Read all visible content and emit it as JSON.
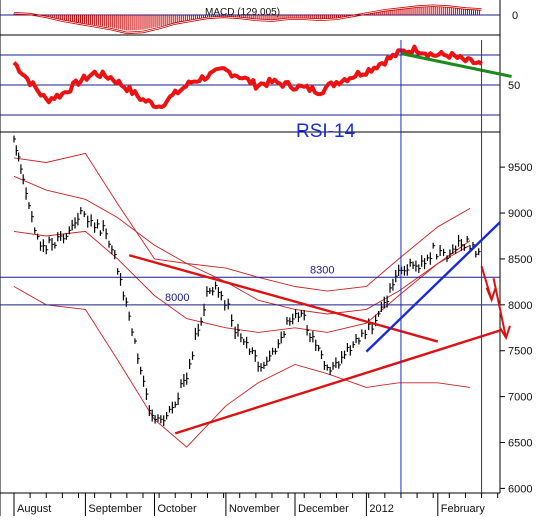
{
  "chart_data": [
    {
      "type": "bar",
      "panel": "macd",
      "title": "MACD (129.005)",
      "y_ticks": [
        "0"
      ],
      "zero_line": 0,
      "ylim": [
        -220,
        160
      ],
      "bar_color": "#cc0000",
      "envelope_color": "#cc0000",
      "note_bars": "histogram, weekly approximate",
      "x": [
        "Aug-01",
        "Aug-08",
        "Aug-15",
        "Aug-22",
        "Aug-29",
        "Sep-05",
        "Sep-12",
        "Sep-19",
        "Sep-26",
        "Oct-03",
        "Oct-10",
        "Oct-17",
        "Oct-24",
        "Oct-31",
        "Nov-07",
        "Nov-14",
        "Nov-21",
        "Nov-28",
        "Dec-05",
        "Dec-12",
        "Dec-19",
        "Dec-26",
        "Jan-02",
        "Jan-09",
        "Jan-16",
        "Jan-23",
        "Jan-30",
        "Feb-06",
        "Feb-13",
        "Feb-20"
      ],
      "values": [
        20,
        10,
        -20,
        -60,
        -90,
        -120,
        -150,
        -190,
        -180,
        -140,
        -90,
        -60,
        -30,
        -20,
        -30,
        -50,
        -60,
        -40,
        -40,
        -50,
        -40,
        -10,
        20,
        50,
        70,
        90,
        100,
        90,
        70,
        60
      ]
    },
    {
      "type": "line",
      "panel": "rsi",
      "title": "RSI-14",
      "y_ticks": [
        "50"
      ],
      "reference_levels": [
        70,
        50,
        30
      ],
      "ylim": [
        20,
        80
      ],
      "line_color": "#ee1111",
      "trendline_color": "#1a8a1a",
      "x": [
        "Aug-01",
        "Aug-08",
        "Aug-15",
        "Aug-22",
        "Aug-29",
        "Sep-05",
        "Sep-12",
        "Sep-19",
        "Sep-26",
        "Oct-03",
        "Oct-10",
        "Oct-17",
        "Oct-24",
        "Oct-31",
        "Nov-07",
        "Nov-14",
        "Nov-21",
        "Nov-28",
        "Dec-05",
        "Dec-12",
        "Dec-19",
        "Dec-26",
        "Jan-02",
        "Jan-09",
        "Jan-16",
        "Jan-23",
        "Jan-30",
        "Feb-06",
        "Feb-13",
        "Feb-20"
      ],
      "values": [
        65,
        52,
        40,
        44,
        52,
        58,
        55,
        48,
        40,
        36,
        44,
        52,
        56,
        60,
        56,
        50,
        52,
        50,
        48,
        46,
        52,
        56,
        60,
        66,
        72,
        74,
        70,
        70,
        66,
        64
      ],
      "trendline": [
        {
          "x": "Jan-16",
          "y": 71
        },
        {
          "x": "Feb-20",
          "y": 59
        }
      ]
    },
    {
      "type": "line",
      "panel": "price",
      "y_ticks": [
        6000,
        6500,
        7000,
        7500,
        8000,
        8500,
        9000,
        9500
      ],
      "ylim": [
        5950,
        9850
      ],
      "x_tick_labels": [
        "August",
        "September",
        "October",
        "November",
        "December",
        "2012",
        "February"
      ],
      "series": [
        {
          "style": "price-bars",
          "color": "#000000",
          "x": [
            "Aug-01",
            "Aug-05",
            "Aug-10",
            "Aug-15",
            "Aug-20",
            "Aug-25",
            "Aug-30",
            "Sep-05",
            "Sep-10",
            "Sep-15",
            "Sep-20",
            "Sep-25",
            "Sep-30",
            "Oct-05",
            "Oct-10",
            "Oct-15",
            "Oct-20",
            "Oct-25",
            "Oct-30",
            "Nov-05",
            "Nov-10",
            "Nov-15",
            "Nov-20",
            "Nov-25",
            "Nov-30",
            "Dec-05",
            "Dec-10",
            "Dec-15",
            "Dec-20",
            "Dec-25",
            "Dec-30",
            "Jan-05",
            "Jan-10",
            "Jan-15",
            "Jan-20",
            "Jan-25",
            "Jan-30",
            "Feb-05",
            "Feb-10",
            "Feb-15",
            "Feb-20"
          ],
          "values": [
            9750,
            9400,
            8750,
            8650,
            8700,
            8800,
            9000,
            8850,
            8800,
            8400,
            7900,
            7300,
            6750,
            6700,
            6950,
            7250,
            7750,
            8200,
            8150,
            7750,
            7600,
            7350,
            7450,
            7650,
            7900,
            7850,
            7550,
            7300,
            7350,
            7550,
            7700,
            7800,
            8050,
            8350,
            8400,
            8450,
            8600,
            8500,
            8700,
            8650,
            8500
          ]
        },
        {
          "style": "band",
          "color": "#cc2222",
          "x": [
            "Aug-01",
            "Aug-15",
            "Sep-01",
            "Sep-15",
            "Oct-01",
            "Oct-15",
            "Nov-01",
            "Nov-15",
            "Dec-01",
            "Dec-15",
            "Jan-01",
            "Jan-15",
            "Feb-01",
            "Feb-15"
          ],
          "values": [
            9400,
            9250,
            9150,
            8950,
            8650,
            8450,
            8250,
            8050,
            7950,
            7900,
            7950,
            8150,
            8450,
            8700
          ]
        },
        {
          "style": "band",
          "color": "#cc2222",
          "x": [
            "Aug-01",
            "Aug-15",
            "Sep-01",
            "Sep-15",
            "Oct-01",
            "Oct-15",
            "Nov-01",
            "Nov-15",
            "Dec-01",
            "Dec-15",
            "Jan-01",
            "Jan-15",
            "Feb-01",
            "Feb-15"
          ],
          "values": [
            8800,
            8750,
            8800,
            8500,
            8100,
            7850,
            7750,
            7700,
            7750,
            7700,
            7800,
            8100,
            8450,
            8650
          ]
        },
        {
          "style": "band",
          "color": "#cc2222",
          "x": [
            "Aug-01",
            "Aug-15",
            "Sep-01",
            "Sep-15",
            "Oct-01",
            "Oct-15",
            "Nov-01",
            "Nov-15",
            "Dec-01",
            "Dec-15",
            "Jan-01",
            "Jan-15",
            "Feb-01",
            "Feb-15"
          ],
          "values": [
            9600,
            9550,
            9650,
            9100,
            8500,
            8450,
            8400,
            8300,
            8200,
            8150,
            8200,
            8500,
            8850,
            9050
          ]
        },
        {
          "style": "band",
          "color": "#cc2222",
          "x": [
            "Aug-01",
            "Aug-15",
            "Sep-01",
            "Sep-15",
            "Oct-01",
            "Oct-15",
            "Nov-01",
            "Nov-15",
            "Dec-01",
            "Dec-15",
            "Jan-01",
            "Jan-15",
            "Feb-01",
            "Feb-15"
          ],
          "values": [
            8200,
            8000,
            7950,
            7400,
            6750,
            6450,
            6900,
            7150,
            7350,
            7250,
            7100,
            7150,
            7150,
            7100
          ]
        }
      ],
      "annotations": [
        {
          "kind": "hline",
          "y": 8300,
          "label": "8300",
          "color": "#1c1c8c"
        },
        {
          "kind": "hline",
          "y": 8000,
          "label": "8000",
          "color": "#1c1c8c"
        },
        {
          "kind": "trendline",
          "color": "#dd1111",
          "from": {
            "x": "Sep-20",
            "y": 8540
          },
          "to": {
            "x": "Feb-01",
            "y": 7600
          }
        },
        {
          "kind": "trendline",
          "color": "#dd1111",
          "from": {
            "x": "Oct-10",
            "y": 6600
          },
          "to": {
            "x": "Feb-28",
            "y": 7720
          }
        },
        {
          "kind": "trendline",
          "color": "#1a2bd6",
          "from": {
            "x": "Jan-01",
            "y": 7490
          },
          "to": {
            "x": "Feb-28",
            "y": 8900
          }
        },
        {
          "kind": "arrow",
          "color": "#dd1111",
          "from": {
            "x": "Feb-20",
            "y": 8420
          },
          "to": {
            "x": "Feb-28",
            "y": 7750
          }
        },
        {
          "kind": "vline",
          "x": "Jan-16",
          "color": "#1a2bd6"
        },
        {
          "kind": "vline",
          "x": "Feb-20",
          "color": "#1a2bd6"
        }
      ]
    }
  ]
}
